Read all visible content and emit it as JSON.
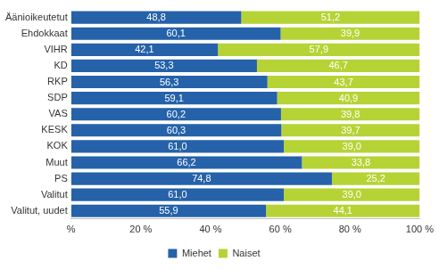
{
  "chart_data": {
    "type": "bar",
    "orientation": "horizontal",
    "stacked": true,
    "data_labels": true,
    "grid": false,
    "legend": "bottom",
    "categories": [
      "Äänioikeutetut",
      "Ehdokkaat",
      "VIHR",
      "KD",
      "RKP",
      "SDP",
      "VAS",
      "KESK",
      "KOK",
      "Muut",
      "PS",
      "Valitut",
      "Valitut, uudet"
    ],
    "series": [
      {
        "name": "Miehet",
        "color": "#2562a9",
        "values": [
          48.8,
          60.1,
          42.1,
          53.3,
          56.3,
          59.1,
          60.2,
          60.3,
          61.0,
          66.2,
          74.8,
          61.0,
          55.9
        ],
        "value_labels": [
          "48,8",
          "60,1",
          "42,1",
          "53,3",
          "56,3",
          "59,1",
          "60,2",
          "60,3",
          "61,0",
          "66,2",
          "74,8",
          "61,0",
          "55,9"
        ]
      },
      {
        "name": "Naiset",
        "color": "#b6d335",
        "values": [
          51.2,
          39.9,
          57.9,
          46.7,
          43.7,
          40.9,
          39.8,
          39.7,
          39.0,
          33.8,
          25.2,
          39.0,
          44.1
        ],
        "value_labels": [
          "51,2",
          "39,9",
          "57,9",
          "46,7",
          "43,7",
          "40,9",
          "39,8",
          "39,7",
          "39,0",
          "33,8",
          "25,2",
          "39,0",
          "44,1"
        ]
      }
    ],
    "xlim": [
      0,
      100
    ],
    "xticks": [
      {
        "value": 0,
        "label": "%"
      },
      {
        "value": 20,
        "label": "20 %"
      },
      {
        "value": 40,
        "label": "40 %"
      },
      {
        "value": 60,
        "label": "60 %"
      },
      {
        "value": 80,
        "label": "80 %"
      },
      {
        "value": 100,
        "label": "100 %"
      }
    ]
  }
}
